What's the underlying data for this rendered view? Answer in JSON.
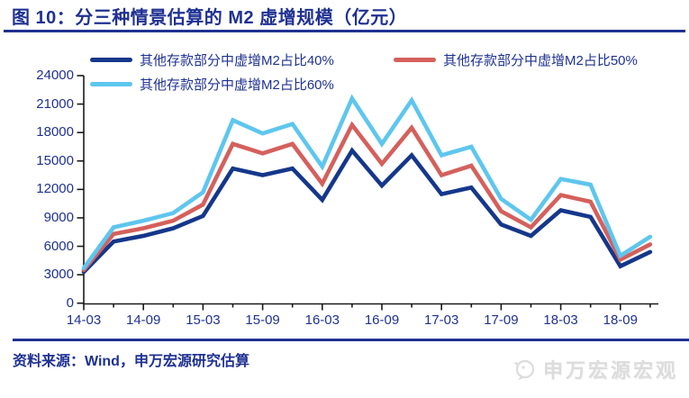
{
  "title": "图 10：分三种情景估算的 M2 虚增规模（亿元）",
  "source_note": "资料来源：Wind，申万宏源研究估算",
  "watermark_text": "申万宏源宏观",
  "colors": {
    "heading_blue": "#1F3192",
    "axis_line": "#1a1a1a",
    "series_40": "#15378B",
    "series_50": "#D4605C",
    "series_60": "#5EC6EE",
    "watermark_gray": "#DCDCDC"
  },
  "chart_data": {
    "type": "line",
    "title": "分三种情景估算的 M2 虚增规模（亿元）",
    "categories": [
      "14-03",
      "14-06",
      "14-09",
      "14-12",
      "15-03",
      "15-06",
      "15-09",
      "15-12",
      "16-03",
      "16-06",
      "16-09",
      "16-12",
      "17-03",
      "17-06",
      "17-09",
      "17-12",
      "18-03",
      "18-06",
      "18-09",
      "18-12"
    ],
    "x_axis_labels_shown": [
      "14-03",
      "14-09",
      "15-03",
      "15-09",
      "16-03",
      "16-09",
      "17-03",
      "17-09",
      "18-03",
      "18-09"
    ],
    "y_ticks": [
      0,
      3000,
      6000,
      9000,
      12000,
      15000,
      18000,
      21000,
      24000
    ],
    "ylim": [
      0,
      24000
    ],
    "grid": false,
    "legend_position": "top",
    "series": [
      {
        "name": "其他存款部分中虚增M2占比40%",
        "color": "#15378B",
        "values": [
          3300,
          6500,
          7100,
          7900,
          9200,
          14200,
          13500,
          14200,
          10900,
          16100,
          12400,
          15600,
          11500,
          12200,
          8300,
          7100,
          9800,
          9100,
          3900,
          5400
        ]
      },
      {
        "name": "其他存款部分中虚增M2占比50%",
        "color": "#D4605C",
        "values": [
          3500,
          7300,
          7900,
          8700,
          10400,
          16800,
          15800,
          16800,
          12600,
          18800,
          14700,
          18500,
          13500,
          14500,
          9700,
          8000,
          11400,
          10700,
          4600,
          6200
        ]
      },
      {
        "name": "其他存款部分中虚增M2占比60%",
        "color": "#5EC6EE",
        "values": [
          3700,
          8000,
          8700,
          9500,
          11700,
          19300,
          17900,
          18900,
          14400,
          21600,
          16800,
          21400,
          15600,
          16500,
          11000,
          8800,
          13100,
          12500,
          5000,
          7000
        ]
      }
    ]
  }
}
